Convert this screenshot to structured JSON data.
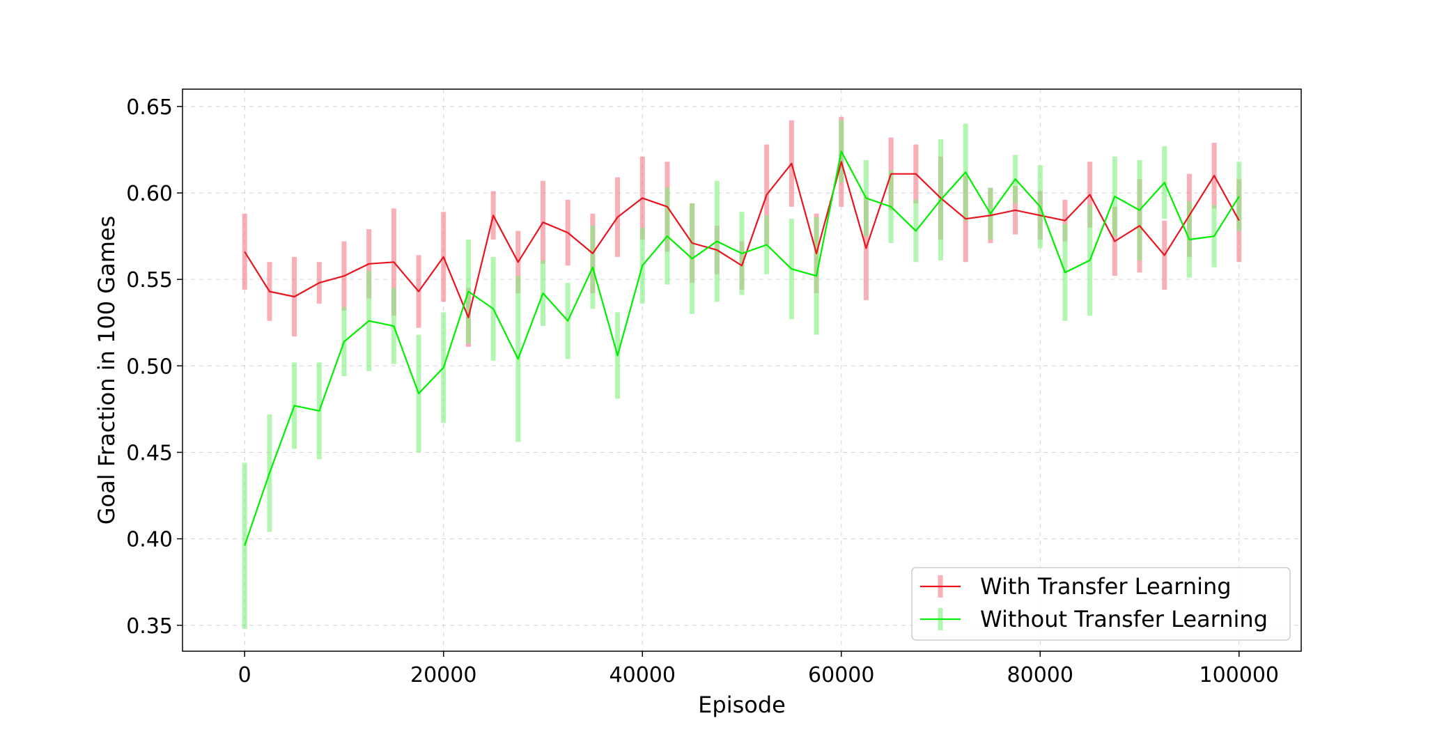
{
  "chart_data": {
    "type": "line",
    "title": "",
    "xlabel": "Episode",
    "ylabel": "Goal Fraction in 100 Games",
    "xlim": [
      -6250,
      106250
    ],
    "ylim": [
      0.335,
      0.66
    ],
    "xticks": [
      0,
      20000,
      40000,
      60000,
      80000,
      100000
    ],
    "xtick_labels": [
      "0",
      "20000",
      "40000",
      "60000",
      "80000",
      "100000"
    ],
    "yticks": [
      0.35,
      0.4,
      0.45,
      0.5,
      0.55,
      0.6,
      0.65
    ],
    "ytick_labels": [
      "0.35",
      "0.40",
      "0.45",
      "0.50",
      "0.55",
      "0.60",
      "0.65"
    ],
    "grid": true,
    "legend_position": "lower-right",
    "x": [
      0,
      2500,
      5000,
      7500,
      10000,
      12500,
      15000,
      17500,
      20000,
      22500,
      25000,
      27500,
      30000,
      32500,
      35000,
      37500,
      40000,
      42500,
      45000,
      47500,
      50000,
      52500,
      55000,
      57500,
      60000,
      62500,
      65000,
      67500,
      70000,
      72500,
      75000,
      77500,
      80000,
      82500,
      85000,
      87500,
      90000,
      92500,
      95000,
      97500,
      100000
    ],
    "series": [
      {
        "name": "With Transfer Learning",
        "color": "#e8141e",
        "errcolor": "#f47a86",
        "values": [
          0.566,
          0.543,
          0.54,
          0.548,
          0.552,
          0.559,
          0.56,
          0.543,
          0.563,
          0.528,
          0.587,
          0.56,
          0.583,
          0.577,
          0.565,
          0.586,
          0.597,
          0.592,
          0.571,
          0.567,
          0.558,
          0.599,
          0.617,
          0.565,
          0.618,
          0.568,
          0.611,
          0.611,
          0.597,
          0.585,
          0.587,
          0.59,
          0.587,
          0.584,
          0.599,
          0.572,
          0.581,
          0.564,
          0.587,
          0.61,
          0.584
        ],
        "errors": [
          0.022,
          0.017,
          0.023,
          0.012,
          0.02,
          0.02,
          0.031,
          0.021,
          0.026,
          0.017,
          0.014,
          0.018,
          0.024,
          0.019,
          0.023,
          0.023,
          0.024,
          0.026,
          0.023,
          0.014,
          0.014,
          0.029,
          0.025,
          0.023,
          0.026,
          0.03,
          0.021,
          0.017,
          0.024,
          0.025,
          0.016,
          0.014,
          0.014,
          0.012,
          0.019,
          0.02,
          0.027,
          0.02,
          0.024,
          0.019,
          0.024
        ]
      },
      {
        "name": "Without Transfer Learning",
        "color": "#00ee00",
        "errcolor": "#7ef07e",
        "values": [
          0.396,
          0.438,
          0.477,
          0.474,
          0.514,
          0.526,
          0.523,
          0.484,
          0.499,
          0.543,
          0.533,
          0.504,
          0.542,
          0.526,
          0.557,
          0.506,
          0.558,
          0.575,
          0.562,
          0.572,
          0.565,
          0.57,
          0.556,
          0.552,
          0.624,
          0.597,
          0.592,
          0.578,
          0.596,
          0.612,
          0.588,
          0.608,
          0.592,
          0.554,
          0.561,
          0.598,
          0.59,
          0.606,
          0.573,
          0.575,
          0.598
        ],
        "errors": [
          0.048,
          0.034,
          0.025,
          0.028,
          0.02,
          0.029,
          0.022,
          0.034,
          0.032,
          0.03,
          0.03,
          0.048,
          0.019,
          0.022,
          0.024,
          0.025,
          0.022,
          0.028,
          0.032,
          0.035,
          0.024,
          0.017,
          0.029,
          0.034,
          0.018,
          0.022,
          0.021,
          0.018,
          0.035,
          0.028,
          0.015,
          0.014,
          0.024,
          0.028,
          0.032,
          0.023,
          0.029,
          0.021,
          0.022,
          0.018,
          0.02
        ]
      }
    ]
  }
}
